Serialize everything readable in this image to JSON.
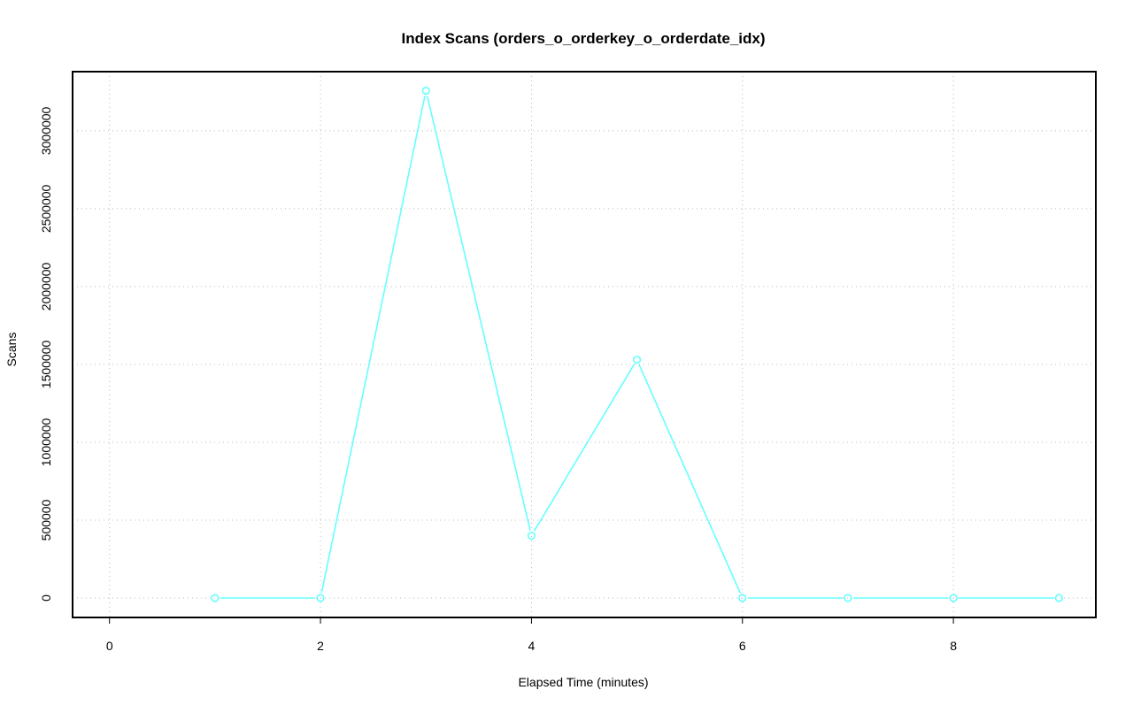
{
  "chart_data": {
    "type": "line",
    "title": "Index Scans (orders_o_orderkey_o_orderdate_idx)",
    "xlabel": "Elapsed Time (minutes)",
    "ylabel": "Scans",
    "x": [
      1,
      2,
      3,
      4,
      5,
      6,
      7,
      8,
      9
    ],
    "series": [
      {
        "values": [
          0,
          0,
          3258000,
          400000,
          1530000,
          0,
          0,
          0,
          0
        ],
        "color": "#66ffff"
      }
    ],
    "xlim": [
      -0.35,
      9.35
    ],
    "ylim": [
      -125000,
      3380000
    ],
    "xticks": [
      0,
      2,
      4,
      6,
      8
    ],
    "xtick_labels": [
      "0",
      "2",
      "4",
      "6",
      "8"
    ],
    "yticks": [
      0,
      500000,
      1000000,
      1500000,
      2000000,
      2500000,
      3000000
    ],
    "ytick_labels": [
      "0",
      "500000",
      "1000000",
      "1500000",
      "2000000",
      "2500000",
      "3000000"
    ],
    "grid": true,
    "markers": "open-circle"
  }
}
